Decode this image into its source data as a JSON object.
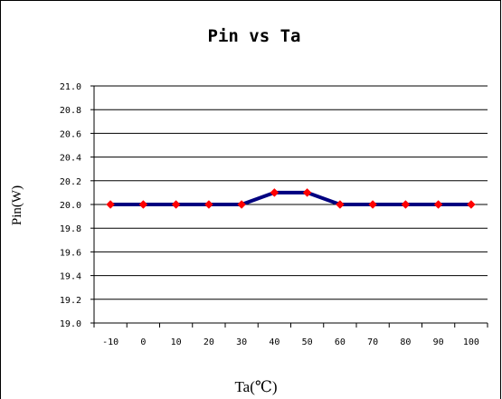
{
  "chart_data": {
    "type": "line",
    "title": "Pin vs Ta",
    "xlabel": "Ta(℃)",
    "ylabel": "Pin(W)",
    "categories": [
      "-10",
      "0",
      "10",
      "20",
      "30",
      "40",
      "50",
      "60",
      "70",
      "80",
      "90",
      "100"
    ],
    "series": [
      {
        "values": [
          20.0,
          20.0,
          20.0,
          20.0,
          20.0,
          20.1,
          20.1,
          20.0,
          20.0,
          20.0,
          20.0,
          20.0
        ]
      }
    ],
    "ylim": [
      19.0,
      21.0
    ],
    "yticks": [
      "19.0",
      "19.2",
      "19.4",
      "19.6",
      "19.8",
      "20.0",
      "20.2",
      "20.4",
      "20.6",
      "20.8",
      "21.0"
    ],
    "grid": "horizontal",
    "legend": "none",
    "colors": {
      "line": "#000080",
      "marker": "#ff0000",
      "grid": "#000000",
      "border": "#000000"
    }
  }
}
